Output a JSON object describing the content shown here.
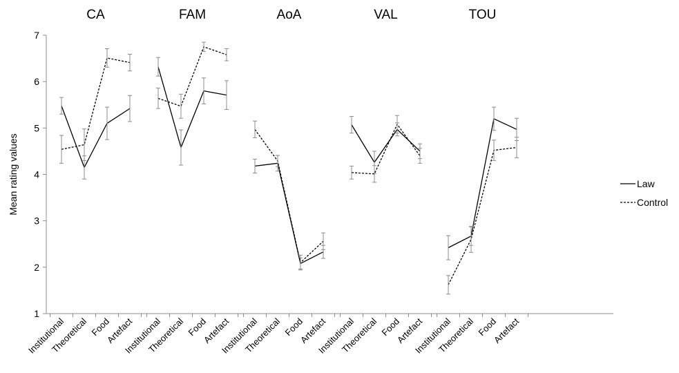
{
  "chart_data": {
    "type": "line",
    "ylabel": "Mean rating values",
    "ylim": [
      1,
      7
    ],
    "yticks": [
      "1",
      "2",
      "3",
      "4",
      "5",
      "6",
      "7"
    ],
    "categories": [
      "Institutional",
      "Theoretical",
      "Food",
      "Artefact"
    ],
    "legend": {
      "placement": "right",
      "entries": [
        {
          "name": "Law",
          "style": "solid"
        },
        {
          "name": "Control",
          "style": "dashed"
        }
      ]
    },
    "panels": [
      {
        "title": "CA",
        "series": [
          {
            "name": "Law",
            "values": [
              5.48,
              4.15,
              5.1,
              5.42
            ],
            "errors": [
              0.18,
              0.25,
              0.35,
              0.28
            ]
          },
          {
            "name": "Control",
            "values": [
              4.54,
              4.64,
              6.51,
              6.41
            ],
            "errors": [
              0.3,
              0.34,
              0.2,
              0.18
            ]
          }
        ]
      },
      {
        "title": "FAM",
        "series": [
          {
            "name": "Law",
            "values": [
              6.32,
              4.58,
              5.8,
              5.71
            ],
            "errors": [
              0.2,
              0.38,
              0.28,
              0.31
            ]
          },
          {
            "name": "Control",
            "values": [
              5.64,
              5.47,
              6.75,
              6.58
            ],
            "errors": [
              0.22,
              0.26,
              0.1,
              0.13
            ]
          }
        ]
      },
      {
        "title": "AoA",
        "series": [
          {
            "name": "Law",
            "values": [
              4.18,
              4.24,
              2.08,
              2.33
            ],
            "errors": [
              0.15,
              0.17,
              0.12,
              0.14
            ]
          },
          {
            "name": "Control",
            "values": [
              4.97,
              4.29,
              2.1,
              2.56
            ],
            "errors": [
              0.18,
              0.12,
              0.16,
              0.18
            ]
          }
        ]
      },
      {
        "title": "VAL",
        "series": [
          {
            "name": "Law",
            "values": [
              5.07,
              4.26,
              4.97,
              4.5
            ],
            "errors": [
              0.18,
              0.24,
              0.14,
              0.16
            ]
          },
          {
            "name": "Control",
            "values": [
              4.04,
              4.01,
              5.08,
              4.4
            ],
            "errors": [
              0.14,
              0.18,
              0.19,
              0.16
            ]
          }
        ]
      },
      {
        "title": "TOU",
        "series": [
          {
            "name": "Law",
            "values": [
              2.42,
              2.67,
              5.2,
              4.97
            ],
            "errors": [
              0.26,
              0.2,
              0.25,
              0.24
            ]
          },
          {
            "name": "Control",
            "values": [
              1.62,
              2.6,
              4.52,
              4.58
            ],
            "errors": [
              0.2,
              0.28,
              0.22,
              0.22
            ]
          }
        ]
      }
    ]
  }
}
